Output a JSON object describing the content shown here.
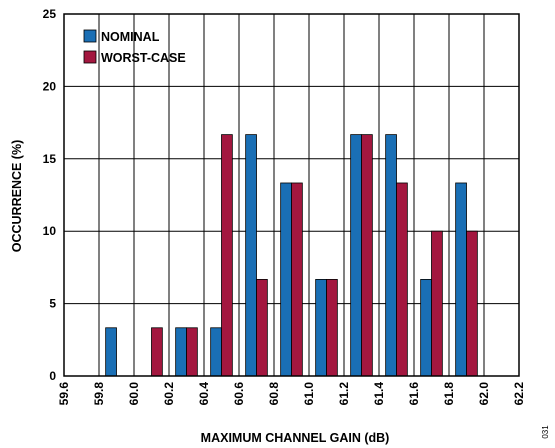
{
  "chart_data": {
    "type": "bar",
    "xlabel": "MAXIMUM CHANNEL GAIN (dB)",
    "ylabel": "OCCURRENCE (%)",
    "xlim": [
      59.6,
      62.2
    ],
    "ylim": [
      0,
      25
    ],
    "x_ticks": [
      "59.6",
      "59.8",
      "60.0",
      "60.2",
      "60.4",
      "60.6",
      "60.8",
      "61.0",
      "61.2",
      "61.4",
      "61.6",
      "61.8",
      "62.0",
      "62.2"
    ],
    "y_ticks": [
      "0",
      "5",
      "10",
      "15",
      "20",
      "25"
    ],
    "bin_centers": [
      59.9,
      60.1,
      60.3,
      60.5,
      60.7,
      60.9,
      61.1,
      61.3,
      61.5,
      61.7,
      61.9
    ],
    "series": [
      {
        "name": "NOMINAL",
        "color": "#1a6fb5",
        "values": [
          3.33,
          0,
          3.33,
          3.33,
          16.67,
          13.33,
          6.67,
          16.67,
          16.67,
          6.67,
          13.33
        ]
      },
      {
        "name": "WORST-CASE",
        "color": "#a3173f",
        "values": [
          0,
          3.33,
          3.33,
          16.67,
          6.67,
          13.33,
          6.67,
          16.67,
          13.33,
          10,
          10
        ]
      }
    ],
    "grid": true,
    "legend_position": "top-left"
  },
  "figure_code": "031"
}
